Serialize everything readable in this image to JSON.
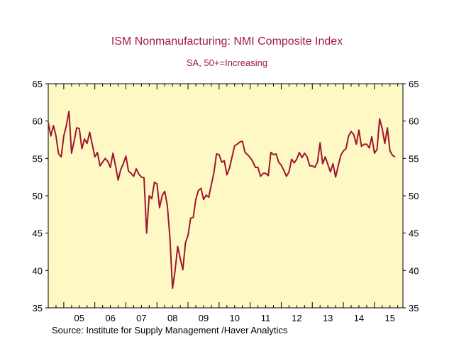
{
  "colors": {
    "background": "#ffffff",
    "plot_background": "#fdf8c4",
    "series_line": "#a0162e",
    "title_text": "#a01c3c",
    "axis": "#000000"
  },
  "chart_data": {
    "type": "line",
    "title": "ISM Nonmanufacturing: NMI Composite Index",
    "subtitle": "SA, 50+=Increasing",
    "source": "Source:  Institute for Supply Management /Haver Analytics",
    "xlabel": "",
    "ylabel": "",
    "ylim": [
      35,
      65
    ],
    "xlim": [
      2004.5,
      2015.917
    ],
    "y_ticks": [
      "35",
      "40",
      "45",
      "50",
      "55",
      "60",
      "65"
    ],
    "x_tick_labels": [
      {
        "label": "05",
        "year": 2005
      },
      {
        "label": "06",
        "year": 2006
      },
      {
        "label": "07",
        "year": 2007
      },
      {
        "label": "08",
        "year": 2008
      },
      {
        "label": "09",
        "year": 2009
      },
      {
        "label": "10",
        "year": 2010
      },
      {
        "label": "11",
        "year": 2011
      },
      {
        "label": "12",
        "year": 2012
      },
      {
        "label": "13",
        "year": 2013
      },
      {
        "label": "14",
        "year": 2014
      },
      {
        "label": "15",
        "year": 2015
      }
    ],
    "grid": false,
    "dual_y_axis": true,
    "series": [
      {
        "start": "2004-07",
        "frequency": "monthly",
        "values": [
          59.8,
          58.0,
          59.4,
          58.0,
          55.6,
          55.2,
          58.0,
          59.4,
          61.3,
          55.7,
          57.3,
          59.1,
          59.0,
          56.3,
          57.6,
          57.0,
          58.5,
          56.9,
          55.2,
          55.8,
          54.0,
          54.5,
          55.0,
          54.6,
          53.8,
          55.7,
          54.0,
          52.1,
          53.5,
          54.3,
          55.3,
          53.3,
          53.0,
          52.6,
          53.6,
          52.9,
          52.5,
          52.4,
          45.0,
          50.0,
          49.6,
          51.8,
          51.6,
          48.4,
          50.0,
          50.6,
          48.7,
          44.4,
          37.6,
          40.0,
          43.2,
          41.6,
          40.1,
          43.7,
          44.7,
          47.0,
          47.1,
          49.5,
          50.7,
          51.0,
          49.5,
          50.1,
          49.8,
          51.5,
          53.1,
          55.6,
          55.5,
          54.5,
          54.7,
          52.8,
          53.7,
          55.2,
          56.7,
          56.9,
          57.2,
          57.3,
          55.8,
          55.5,
          55.1,
          54.6,
          53.8,
          53.8,
          52.6,
          53.0,
          53.0,
          52.7,
          55.8,
          55.5,
          55.6,
          54.5,
          54.1,
          53.4,
          52.6,
          53.2,
          54.9,
          54.4,
          54.9,
          55.8,
          55.1,
          55.7,
          55.2,
          54.0,
          54.0,
          53.8,
          54.5,
          57.1,
          54.3,
          55.2,
          54.2,
          53.2,
          54.3,
          52.5,
          54.0,
          55.4,
          56.0,
          56.3,
          58.0,
          58.6,
          58.2,
          56.9,
          58.8,
          56.6,
          56.9,
          56.9,
          56.4,
          57.9,
          55.7,
          56.2,
          60.3,
          59.0,
          57.0,
          59.1,
          56.0,
          55.4,
          55.2
        ]
      }
    ]
  }
}
